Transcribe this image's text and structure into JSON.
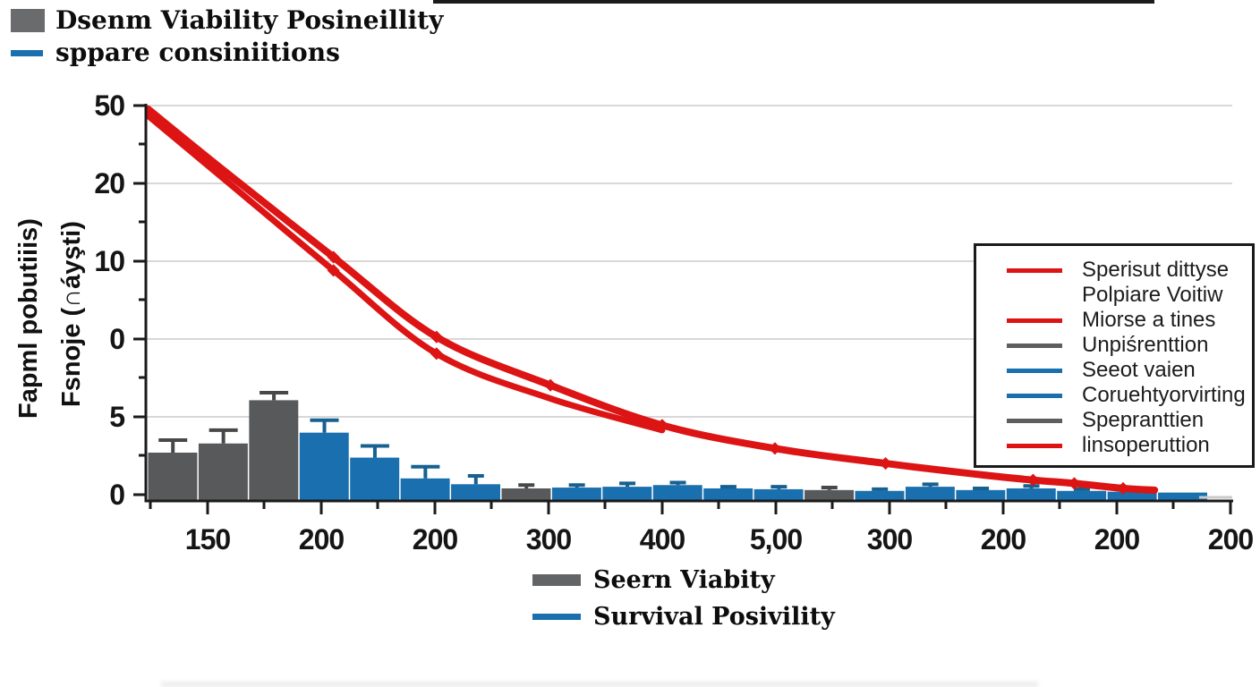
{
  "colors": {
    "bar_gray": "#58595b",
    "bar_blue": "#1a6fae",
    "line_red": "#dc1414",
    "grid": "#d8d8d8",
    "axis": "#1a1a1a",
    "error_gray": "#474849",
    "error_blue": "#16618f",
    "tail_gray": "#c9c9c9"
  },
  "top_legend": {
    "items": [
      {
        "label": "Dsenm Viability Posineillity",
        "swatch": "gray-rect"
      },
      {
        "label": "sppare consiniitions",
        "swatch": "blue-line"
      }
    ]
  },
  "side_legend": {
    "items": [
      {
        "label": "Sperisut dittyse",
        "swatch": "red"
      },
      {
        "label": "Polpiare Voitiw",
        "swatch": "none"
      },
      {
        "label": "Miorse a tines",
        "swatch": "red"
      },
      {
        "label": "Unpiśrenttion",
        "swatch": "gray"
      },
      {
        "label": "Seeot vaien",
        "swatch": "blue"
      },
      {
        "label": "Coruehtyorvirting",
        "swatch": "blue"
      },
      {
        "label": "Spepranttien",
        "swatch": "gray"
      },
      {
        "label": "linsoperuttion",
        "swatch": "red"
      }
    ]
  },
  "bottom_legend": {
    "items": [
      {
        "label": "Seern Viabity",
        "swatch": "gray-rect"
      },
      {
        "label": "Survival Posivility",
        "swatch": "blue-line"
      }
    ]
  },
  "chart_data": {
    "type": "bar",
    "title": "",
    "xlabel": "",
    "ylabel_lines": [
      "Fapml pobutiiis)",
      "Fsnoje (∩áyşti)"
    ],
    "x_axis": {
      "tick_labels": [
        "150",
        "200",
        "200",
        "300",
        "400",
        "5,00",
        "300",
        "200",
        "200",
        "200"
      ]
    },
    "y_axis": {
      "tick_labels_top_to_bottom": [
        "50",
        "20",
        "10",
        "0",
        "5",
        "0"
      ],
      "note": "nonlinear garbled axis as rendered; bar unit scale: one gridline gap = 5 units"
    },
    "grid": "horizontal-only",
    "legend_position": "right-box, top-left, below-chart",
    "bars": {
      "values": [
        2.85,
        3.4,
        6.0,
        4.05,
        2.55,
        1.3,
        0.95,
        0.7,
        0.75,
        0.8,
        0.9,
        0.7,
        0.65,
        0.6,
        0.55,
        0.8,
        0.6,
        0.7,
        0.55,
        0.5,
        0.45
      ],
      "errors": [
        0.75,
        0.8,
        0.45,
        0.75,
        0.7,
        0.7,
        0.5,
        0.2,
        0.15,
        0.2,
        0.15,
        0.1,
        0.15,
        0.15,
        0.1,
        0.15,
        0.1,
        0.15,
        0.1,
        0,
        0
      ],
      "colors": [
        "gray",
        "gray",
        "gray",
        "blue",
        "blue",
        "blue",
        "blue",
        "gray",
        "blue",
        "blue",
        "blue",
        "blue",
        "blue",
        "gray",
        "blue",
        "blue",
        "blue",
        "blue",
        "blue",
        "blue",
        "blue"
      ]
    },
    "line_series": {
      "name": "red descending double curve",
      "points_upper": [
        [
          0.002,
          23.5
        ],
        [
          0.072,
          19.8
        ],
        [
          0.173,
          14.6
        ],
        [
          0.268,
          9.8
        ],
        [
          0.373,
          6.9
        ],
        [
          0.476,
          4.5
        ],
        [
          0.58,
          3.1
        ],
        [
          0.682,
          2.2
        ],
        [
          0.773,
          1.5
        ],
        [
          0.818,
          1.2
        ],
        [
          0.856,
          1.0
        ],
        [
          0.901,
          0.7
        ],
        [
          0.93,
          0.6
        ]
      ],
      "points_lower": [
        [
          0.002,
          23.1
        ],
        [
          0.072,
          19.3
        ],
        [
          0.173,
          13.8
        ],
        [
          0.268,
          8.8
        ],
        [
          0.373,
          6.1
        ],
        [
          0.476,
          4.2
        ]
      ],
      "markers": [
        [
          0.173,
          14.6
        ],
        [
          0.268,
          9.8
        ],
        [
          0.373,
          6.9
        ],
        [
          0.476,
          4.5
        ],
        [
          0.58,
          3.1
        ],
        [
          0.682,
          2.2
        ],
        [
          0.818,
          1.2
        ],
        [
          0.856,
          1.0
        ],
        [
          0.901,
          0.7
        ],
        [
          0.173,
          13.8
        ],
        [
          0.268,
          8.8
        ]
      ]
    }
  }
}
